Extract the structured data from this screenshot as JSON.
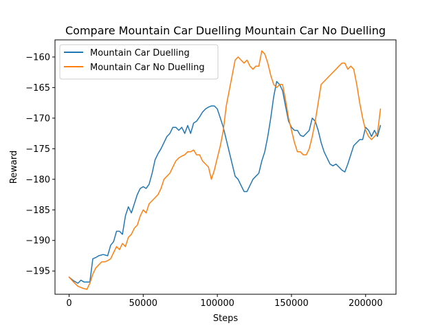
{
  "chart_data": {
    "type": "line",
    "title": "Compare Mountain Car Duelling Mountain Car No Duelling",
    "xlabel": "Steps",
    "ylabel": "Reward",
    "xlim": [
      -9500,
      220500
    ],
    "ylim": [
      -198.8,
      -157.2
    ],
    "xticks": [
      0,
      50000,
      100000,
      150000,
      200000
    ],
    "xtick_labels": [
      "0",
      "50000",
      "100000",
      "150000",
      "200000"
    ],
    "yticks": [
      -160,
      -165,
      -170,
      -175,
      -180,
      -185,
      -190,
      -195
    ],
    "ytick_labels": [
      "−160",
      "−165",
      "−170",
      "−175",
      "−180",
      "−185",
      "−190",
      "−195"
    ],
    "grid": false,
    "legend_position": "top-left",
    "series": [
      {
        "name": "Mountain Car Duelling",
        "color": "#1f77b4",
        "x": [
          0,
          3000,
          6000,
          8000,
          10000,
          14000,
          16000,
          18000,
          20000,
          23000,
          26000,
          28000,
          30000,
          32000,
          34000,
          36000,
          38000,
          40000,
          42000,
          44000,
          46000,
          48000,
          50000,
          52000,
          54000,
          56000,
          58000,
          60000,
          62000,
          64000,
          66000,
          68000,
          70000,
          72000,
          74000,
          76000,
          78000,
          80000,
          82000,
          84000,
          86000,
          88000,
          90000,
          92000,
          94000,
          96000,
          98000,
          100000,
          102000,
          104000,
          106000,
          108000,
          110000,
          112000,
          114000,
          116000,
          118000,
          120000,
          122000,
          124000,
          126000,
          128000,
          130000,
          132000,
          134000,
          136000,
          138000,
          140000,
          142000,
          144000,
          146000,
          148000,
          150000,
          152000,
          154000,
          156000,
          158000,
          160000,
          162000,
          164000,
          166000,
          168000,
          170000,
          172000,
          174000,
          176000,
          178000,
          180000,
          182000,
          184000,
          186000,
          188000,
          190000,
          192000,
          194000,
          196000,
          198000,
          200000,
          202000,
          204000,
          206000,
          208000,
          210000
        ],
        "y": [
          -196,
          -196.6,
          -197,
          -196.5,
          -196.8,
          -196.8,
          -193,
          -192.8,
          -192.5,
          -192.3,
          -192.5,
          -190.8,
          -190.2,
          -188.5,
          -188.5,
          -189,
          -186,
          -184.5,
          -185.5,
          -184,
          -182.5,
          -181.5,
          -181.2,
          -181.5,
          -180.8,
          -179,
          -176.8,
          -175.8,
          -175,
          -174,
          -173,
          -172.5,
          -171.5,
          -171.5,
          -172,
          -171.5,
          -172.5,
          -171.2,
          -172.5,
          -170.8,
          -170.5,
          -169.8,
          -169,
          -168.5,
          -168.2,
          -168,
          -168,
          -168.5,
          -170,
          -171.5,
          -173.5,
          -175.5,
          -177.5,
          -179.5,
          -180,
          -181,
          -182,
          -182,
          -181,
          -180,
          -179.5,
          -179,
          -177,
          -175.5,
          -173,
          -170,
          -166.5,
          -164,
          -164.5,
          -165.5,
          -168,
          -170.5,
          -171.5,
          -172,
          -172,
          -172.8,
          -173,
          -172.5,
          -172,
          -170,
          -170.5,
          -172,
          -174,
          -175.5,
          -176.5,
          -177.5,
          -177.8,
          -177.5,
          -178,
          -178.5,
          -178.8,
          -177.5,
          -176,
          -174.5,
          -174,
          -173.5,
          -173.5,
          -171.5,
          -172,
          -173,
          -172,
          -173,
          -171.2
        ]
      },
      {
        "name": "Mountain Car No Duelling",
        "color": "#ff7f0e",
        "x": [
          0,
          3000,
          6000,
          9000,
          12000,
          14000,
          16000,
          18000,
          20000,
          22000,
          24000,
          26000,
          28000,
          30000,
          32000,
          34000,
          36000,
          38000,
          40000,
          42000,
          44000,
          46000,
          48000,
          50000,
          52000,
          54000,
          56000,
          58000,
          60000,
          62000,
          64000,
          66000,
          68000,
          70000,
          72000,
          74000,
          76000,
          78000,
          80000,
          82000,
          84000,
          86000,
          88000,
          90000,
          92000,
          94000,
          96000,
          98000,
          100000,
          102000,
          104000,
          106000,
          108000,
          110000,
          112000,
          114000,
          116000,
          118000,
          120000,
          122000,
          124000,
          126000,
          128000,
          130000,
          132000,
          134000,
          136000,
          138000,
          140000,
          142000,
          144000,
          146000,
          148000,
          150000,
          152000,
          154000,
          156000,
          158000,
          160000,
          162000,
          164000,
          166000,
          168000,
          170000,
          172000,
          174000,
          176000,
          178000,
          180000,
          182000,
          184000,
          186000,
          188000,
          190000,
          192000,
          194000,
          196000,
          198000,
          200000,
          202000,
          204000,
          206000,
          208000,
          210000
        ],
        "y": [
          -196,
          -196.8,
          -197.5,
          -197.8,
          -198,
          -197,
          -195.5,
          -194.5,
          -194,
          -193.5,
          -193.5,
          -193.3,
          -193,
          -192,
          -191,
          -191.5,
          -190.5,
          -191,
          -189.5,
          -189,
          -188,
          -187.5,
          -186,
          -185,
          -185.5,
          -184,
          -183.5,
          -183,
          -182.5,
          -181.5,
          -180,
          -179.5,
          -179,
          -178,
          -177,
          -176.5,
          -176.2,
          -176,
          -175.5,
          -175.5,
          -175.2,
          -176,
          -176,
          -177,
          -177.5,
          -178,
          -180,
          -178.5,
          -176.5,
          -174.5,
          -172,
          -168,
          -165.5,
          -163,
          -160.5,
          -160,
          -160.5,
          -161,
          -160.5,
          -161.5,
          -162,
          -161.5,
          -161.5,
          -159,
          -159.5,
          -161,
          -163,
          -164.5,
          -165,
          -164.5,
          -164.5,
          -167,
          -170,
          -172,
          -174,
          -175.5,
          -175.5,
          -176,
          -176,
          -175,
          -173,
          -170.5,
          -167.5,
          -164.5,
          -164,
          -163.5,
          -163,
          -162.5,
          -162,
          -161.5,
          -161,
          -161,
          -162,
          -161.5,
          -162,
          -164.5,
          -167.5,
          -170,
          -172,
          -173,
          -173.5,
          -173,
          -172.5,
          -168.5
        ]
      }
    ]
  }
}
